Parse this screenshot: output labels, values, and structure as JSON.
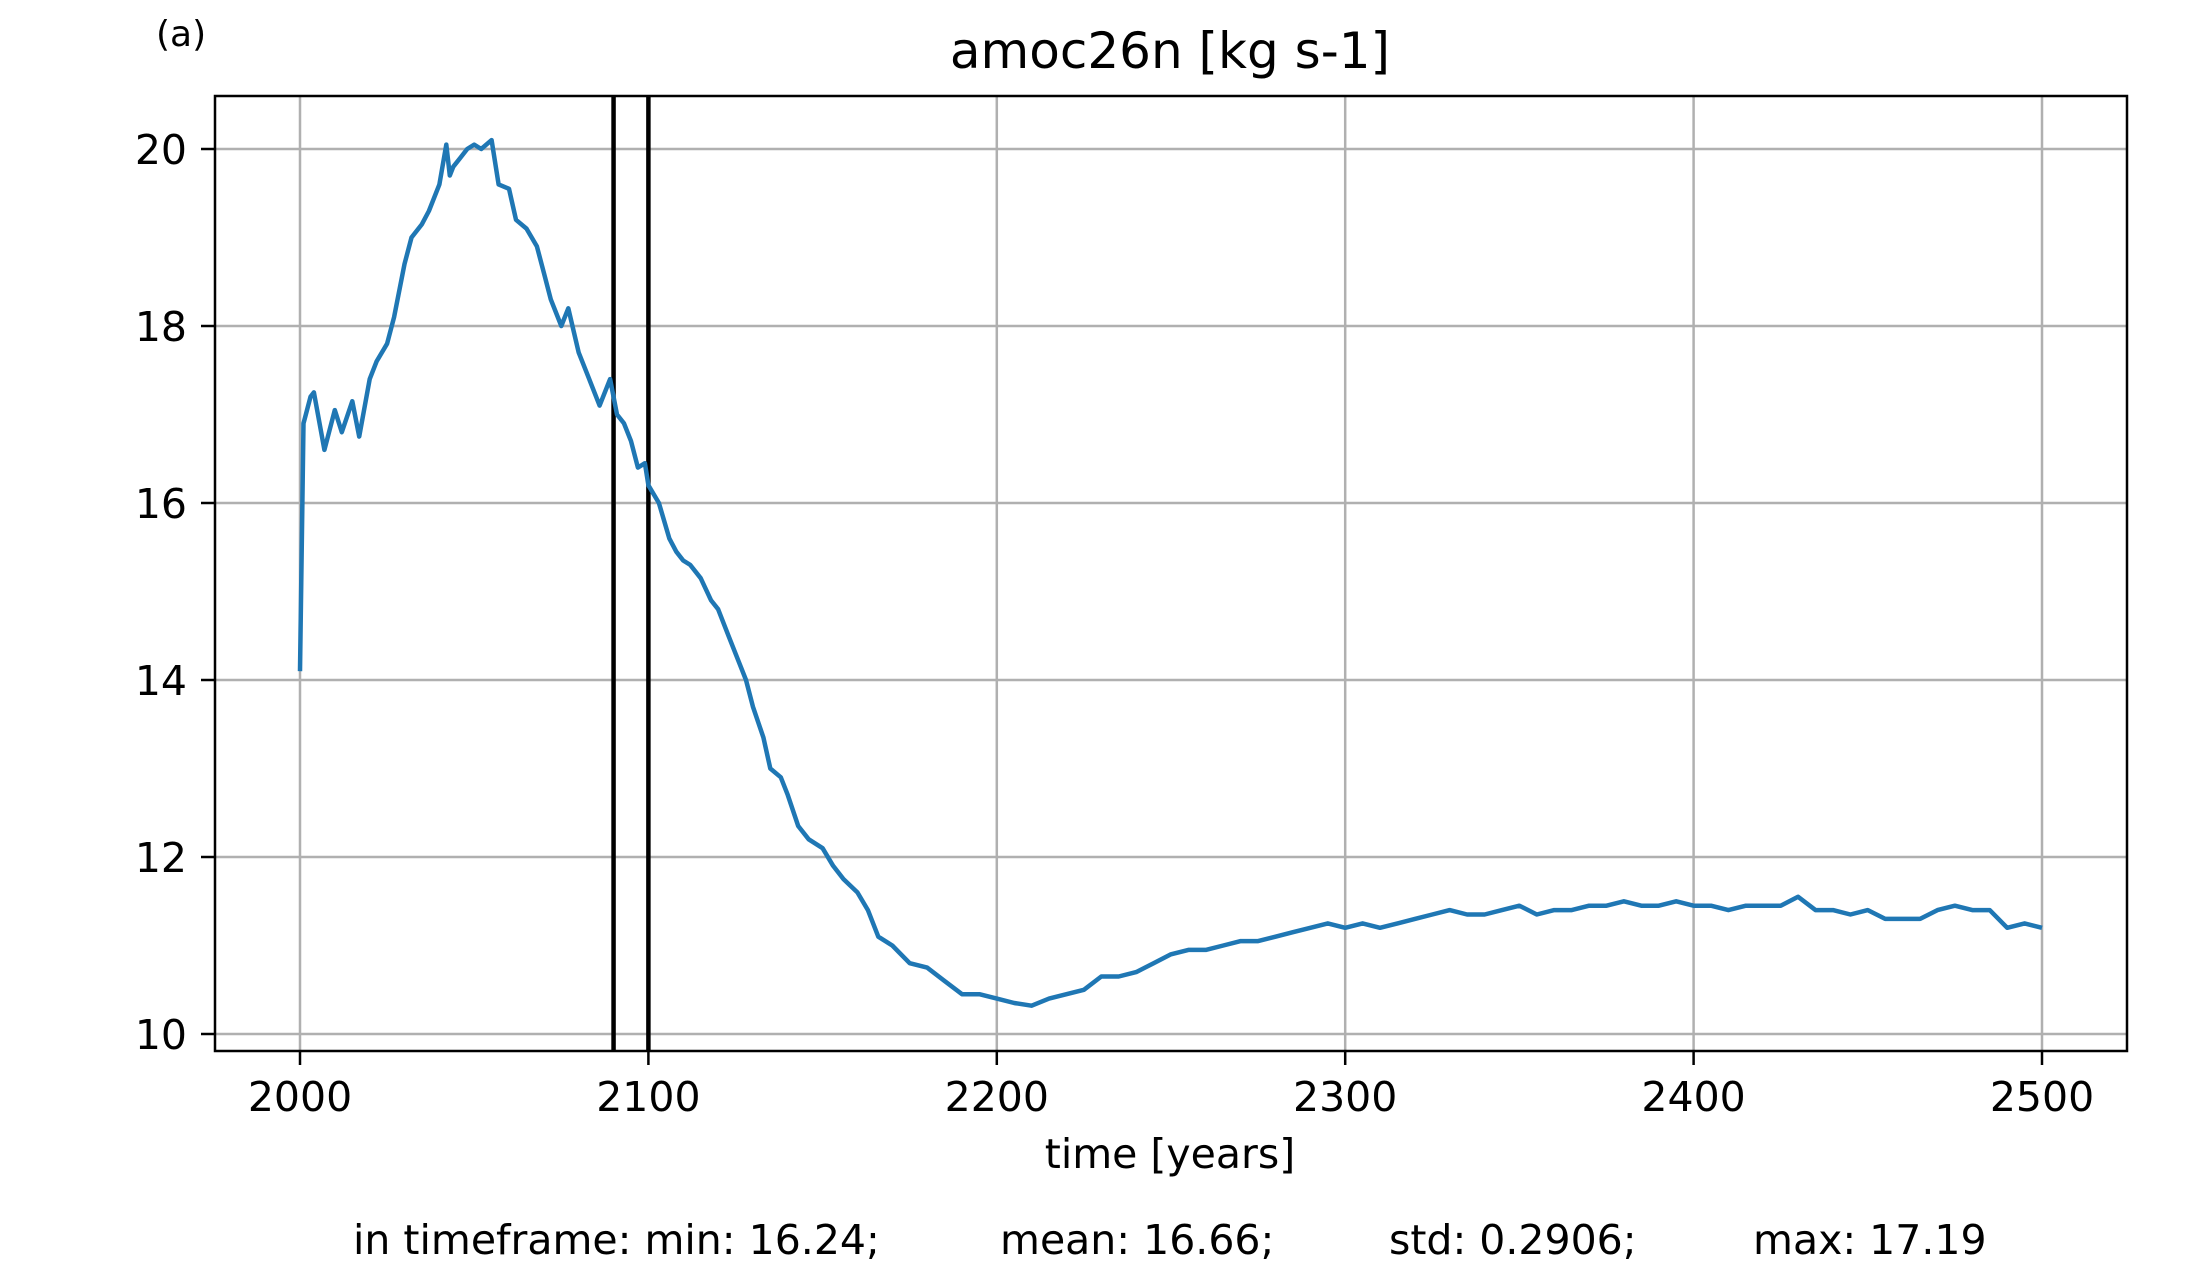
{
  "panel_label": "(a)",
  "chart_data": {
    "type": "line",
    "title": "amoc26n [kg s-1]",
    "xlabel": "time [years]",
    "ylabel": "",
    "xlim": [
      1975,
      2525
    ],
    "ylim": [
      9.8,
      20.6
    ],
    "xticks": [
      2000,
      2100,
      2200,
      2300,
      2400,
      2500
    ],
    "yticks": [
      10,
      12,
      14,
      16,
      18,
      20
    ],
    "xtick_labels": [
      "2000",
      "2100",
      "2200",
      "2300",
      "2400",
      "2500"
    ],
    "ytick_labels": [
      "10",
      "12",
      "14",
      "16",
      "18",
      "20"
    ],
    "grid": true,
    "line_color": "#1f77b4",
    "vlines": [
      2090,
      2100
    ],
    "series": [
      {
        "name": "amoc26n",
        "x": [
          2000,
          2001,
          2003,
          2004,
          2007,
          2010,
          2012,
          2015,
          2017,
          2020,
          2022,
          2025,
          2027,
          2030,
          2032,
          2035,
          2037,
          2040,
          2042,
          2043,
          2044,
          2046,
          2048,
          2050,
          2052,
          2055,
          2057,
          2060,
          2062,
          2065,
          2068,
          2070,
          2072,
          2075,
          2077,
          2080,
          2083,
          2086,
          2089,
          2091,
          2093,
          2095,
          2097,
          2099,
          2100,
          2103,
          2106,
          2108,
          2110,
          2112,
          2115,
          2118,
          2120,
          2123,
          2126,
          2128,
          2130,
          2133,
          2135,
          2138,
          2140,
          2143,
          2146,
          2150,
          2153,
          2156,
          2160,
          2163,
          2166,
          2170,
          2175,
          2180,
          2185,
          2190,
          2195,
          2200,
          2205,
          2210,
          2215,
          2220,
          2225,
          2230,
          2235,
          2240,
          2245,
          2250,
          2255,
          2260,
          2265,
          2270,
          2275,
          2280,
          2285,
          2290,
          2295,
          2300,
          2305,
          2310,
          2315,
          2320,
          2325,
          2330,
          2335,
          2340,
          2345,
          2350,
          2355,
          2360,
          2365,
          2370,
          2375,
          2380,
          2385,
          2390,
          2395,
          2400,
          2405,
          2410,
          2415,
          2420,
          2425,
          2430,
          2435,
          2440,
          2445,
          2450,
          2455,
          2460,
          2465,
          2470,
          2475,
          2480,
          2485,
          2490,
          2495,
          2500
        ],
        "y": [
          14.1,
          16.9,
          17.2,
          17.25,
          16.6,
          17.05,
          16.8,
          17.15,
          16.75,
          17.4,
          17.6,
          17.8,
          18.1,
          18.7,
          19.0,
          19.15,
          19.3,
          19.6,
          20.05,
          19.7,
          19.8,
          19.9,
          20.0,
          20.05,
          20.0,
          20.1,
          19.6,
          19.55,
          19.2,
          19.1,
          18.9,
          18.6,
          18.3,
          18.0,
          18.2,
          17.7,
          17.4,
          17.1,
          17.4,
          17.0,
          16.9,
          16.7,
          16.4,
          16.45,
          16.2,
          16.0,
          15.6,
          15.45,
          15.35,
          15.3,
          15.15,
          14.9,
          14.8,
          14.5,
          14.2,
          14.0,
          13.7,
          13.35,
          13.0,
          12.9,
          12.7,
          12.35,
          12.2,
          12.1,
          11.9,
          11.75,
          11.6,
          11.4,
          11.1,
          11.0,
          10.8,
          10.75,
          10.6,
          10.45,
          10.45,
          10.4,
          10.35,
          10.32,
          10.4,
          10.45,
          10.5,
          10.65,
          10.65,
          10.7,
          10.8,
          10.9,
          10.95,
          10.95,
          11.0,
          11.05,
          11.05,
          11.1,
          11.15,
          11.2,
          11.25,
          11.2,
          11.25,
          11.2,
          11.25,
          11.3,
          11.35,
          11.4,
          11.35,
          11.35,
          11.4,
          11.45,
          11.35,
          11.4,
          11.4,
          11.45,
          11.45,
          11.5,
          11.45,
          11.45,
          11.5,
          11.45,
          11.45,
          11.4,
          11.45,
          11.45,
          11.45,
          11.55,
          11.4,
          11.4,
          11.35,
          11.4,
          11.3,
          11.3,
          11.3,
          11.4,
          11.45,
          11.4,
          11.4,
          11.2,
          11.25,
          11.2
        ]
      }
    ]
  },
  "stats": {
    "min": "in timeframe: min: 16.24;",
    "mean": "mean: 16.66;",
    "std": "std: 0.2906;",
    "max": "max: 17.19"
  }
}
